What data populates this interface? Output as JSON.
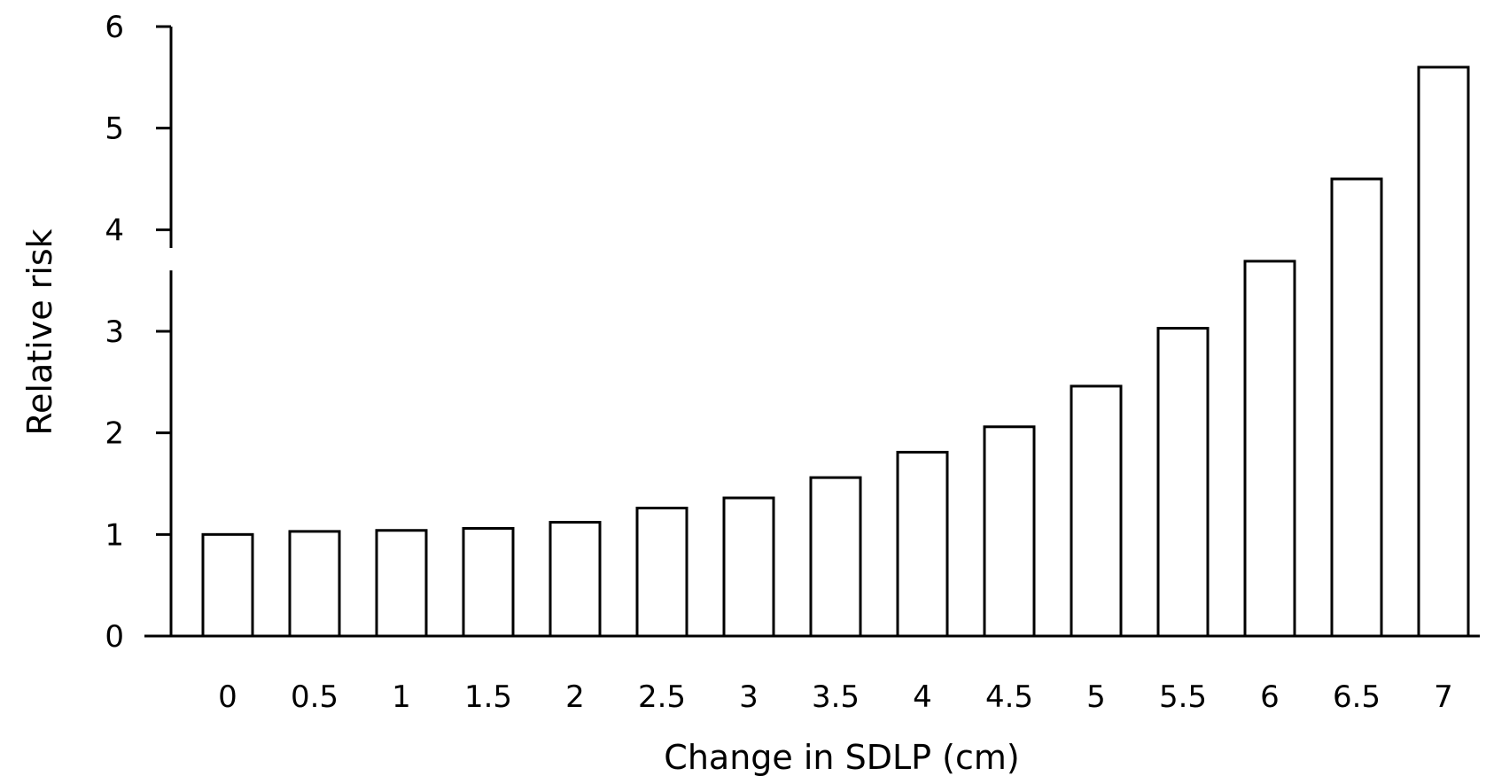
{
  "chart_data": {
    "type": "bar",
    "xlabel": "Change in SDLP (cm)",
    "ylabel": "Relative risk",
    "categories": [
      "0",
      "0.5",
      "1",
      "1.5",
      "2",
      "2.5",
      "3",
      "3.5",
      "4",
      "4.5",
      "5",
      "5.5",
      "6",
      "6.5",
      "7"
    ],
    "values": [
      1.0,
      1.03,
      1.04,
      1.06,
      1.12,
      1.26,
      1.36,
      1.56,
      1.81,
      2.06,
      2.46,
      3.03,
      3.69,
      4.5,
      5.6
    ],
    "ylim": [
      0,
      6
    ],
    "yticks": [
      "0",
      "1",
      "2",
      "3",
      "4",
      "5",
      "6"
    ],
    "axis_break": true,
    "grid": false,
    "bar_fill": "#ffffff",
    "bar_stroke": "#000000"
  }
}
